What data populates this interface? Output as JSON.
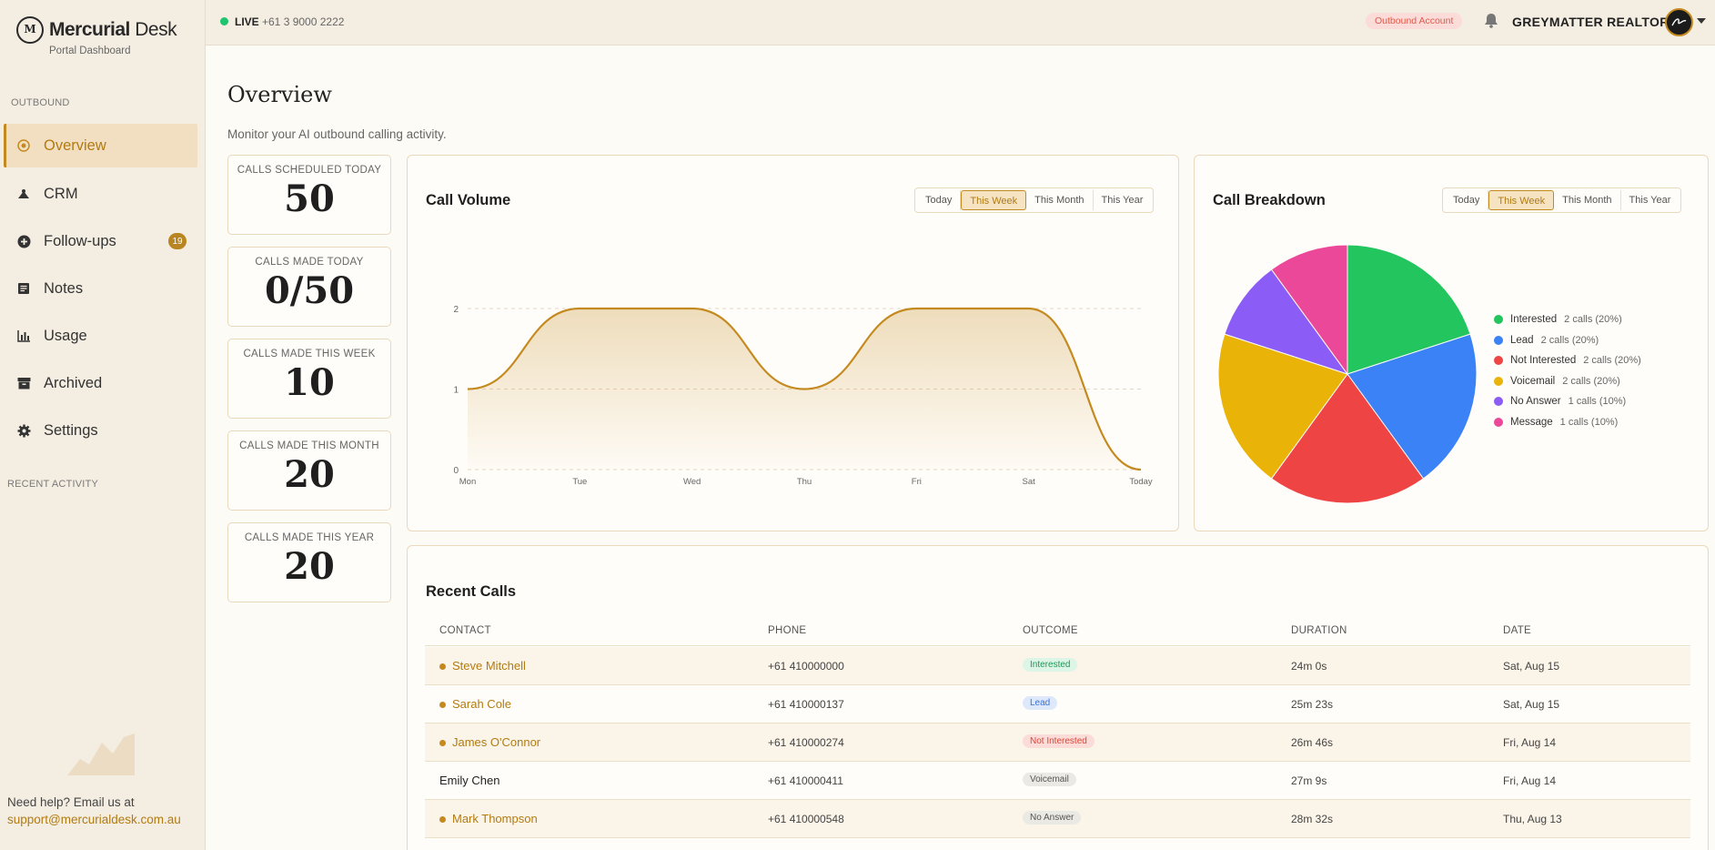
{
  "brand": {
    "name_bold": "Mercurial",
    "name_light": "Desk",
    "subtitle": "Portal Dashboard"
  },
  "sidebar": {
    "section_outbound": "OUTBOUND",
    "items": [
      {
        "label": "Overview",
        "icon": "target-icon",
        "active": true
      },
      {
        "label": "CRM",
        "icon": "contacts-icon"
      },
      {
        "label": "Follow-ups",
        "icon": "plus-circle-icon",
        "badge": "19"
      },
      {
        "label": "Notes",
        "icon": "notes-icon"
      },
      {
        "label": "Usage",
        "icon": "bar-chart-icon"
      },
      {
        "label": "Archived",
        "icon": "archive-icon"
      },
      {
        "label": "Settings",
        "icon": "gear-icon"
      }
    ],
    "section_recent": "RECENT ACTIVITY",
    "help_text": "Need help? Email us at",
    "help_email": "support@mercurialdesk.com.au"
  },
  "topbar": {
    "live_label": "LIVE",
    "phone": "+61 3 9000 2222",
    "account_pill": "Outbound Account",
    "company": "GREYMATTER REALTOR"
  },
  "page": {
    "title": "Overview",
    "subtitle": "Monitor your AI outbound calling activity."
  },
  "stats": [
    {
      "label": "CALLS SCHEDULED TODAY",
      "value": "50"
    },
    {
      "label": "CALLS MADE TODAY",
      "value": "0/50"
    },
    {
      "label": "CALLS MADE THIS WEEK",
      "value": "10"
    },
    {
      "label": "CALLS MADE THIS MONTH",
      "value": "20"
    },
    {
      "label": "CALLS MADE THIS YEAR",
      "value": "20"
    }
  ],
  "range_options": [
    "Today",
    "This Week",
    "This Month",
    "This Year"
  ],
  "range_selected": "This Week",
  "call_volume": {
    "title": "Call Volume"
  },
  "call_breakdown": {
    "title": "Call Breakdown"
  },
  "chart_data": [
    {
      "type": "area",
      "title": "Call Volume",
      "categories": [
        "Mon",
        "Tue",
        "Wed",
        "Thu",
        "Fri",
        "Sat",
        "Today"
      ],
      "y_ticks": [
        "0",
        "1",
        "2"
      ],
      "ylim": [
        0,
        2
      ],
      "values": [
        1,
        2,
        2,
        1,
        2,
        2,
        0
      ],
      "color": "#c48a1f",
      "grid": true
    },
    {
      "type": "pie",
      "title": "Call Breakdown",
      "slices": [
        {
          "label": "Interested",
          "meta": "2 calls (20%)",
          "value": 20,
          "color": "#22c55e"
        },
        {
          "label": "Lead",
          "meta": "2 calls (20%)",
          "value": 20,
          "color": "#3b82f6"
        },
        {
          "label": "Not Interested",
          "meta": "2 calls (20%)",
          "value": 20,
          "color": "#ef4444"
        },
        {
          "label": "Voicemail",
          "meta": "2 calls (20%)",
          "value": 20,
          "color": "#eab308"
        },
        {
          "label": "No Answer",
          "meta": "1 calls (10%)",
          "value": 10,
          "color": "#8b5cf6"
        },
        {
          "label": "Message",
          "meta": "1 calls (10%)",
          "value": 10,
          "color": "#ec4899"
        }
      ],
      "legend": "right"
    }
  ],
  "recent_calls": {
    "title": "Recent Calls",
    "columns": [
      "CONTACT",
      "PHONE",
      "OUTCOME",
      "DURATION",
      "DATE"
    ],
    "rows": [
      {
        "contact": "Steve Mitchell",
        "linked": true,
        "phone": "+61 410000000",
        "outcome": "Interested",
        "duration": "24m 0s",
        "date": "Sat, Aug 15"
      },
      {
        "contact": "Sarah Cole",
        "linked": true,
        "phone": "+61 410000137",
        "outcome": "Lead",
        "duration": "25m 23s",
        "date": "Sat, Aug 15"
      },
      {
        "contact": "James O'Connor",
        "linked": true,
        "phone": "+61 410000274",
        "outcome": "Not Interested",
        "duration": "26m 46s",
        "date": "Fri, Aug 14"
      },
      {
        "contact": "Emily Chen",
        "linked": false,
        "phone": "+61 410000411",
        "outcome": "Voicemail",
        "duration": "27m 9s",
        "date": "Fri, Aug 14"
      },
      {
        "contact": "Mark Thompson",
        "linked": true,
        "phone": "+61 410000548",
        "outcome": "No Answer",
        "duration": "28m 32s",
        "date": "Thu, Aug 13"
      }
    ]
  },
  "outcome_colors": {
    "Interested": {
      "bg": "#dcf5e6",
      "fg": "#1c9a55"
    },
    "Lead": {
      "bg": "#dde9fb",
      "fg": "#3a72d8"
    },
    "Not Interested": {
      "bg": "#fbdcd8",
      "fg": "#d9473a"
    },
    "Voicemail": {
      "bg": "#ebe9e4",
      "fg": "#555555"
    },
    "No Answer": {
      "bg": "#ebe9e4",
      "fg": "#555555"
    }
  }
}
